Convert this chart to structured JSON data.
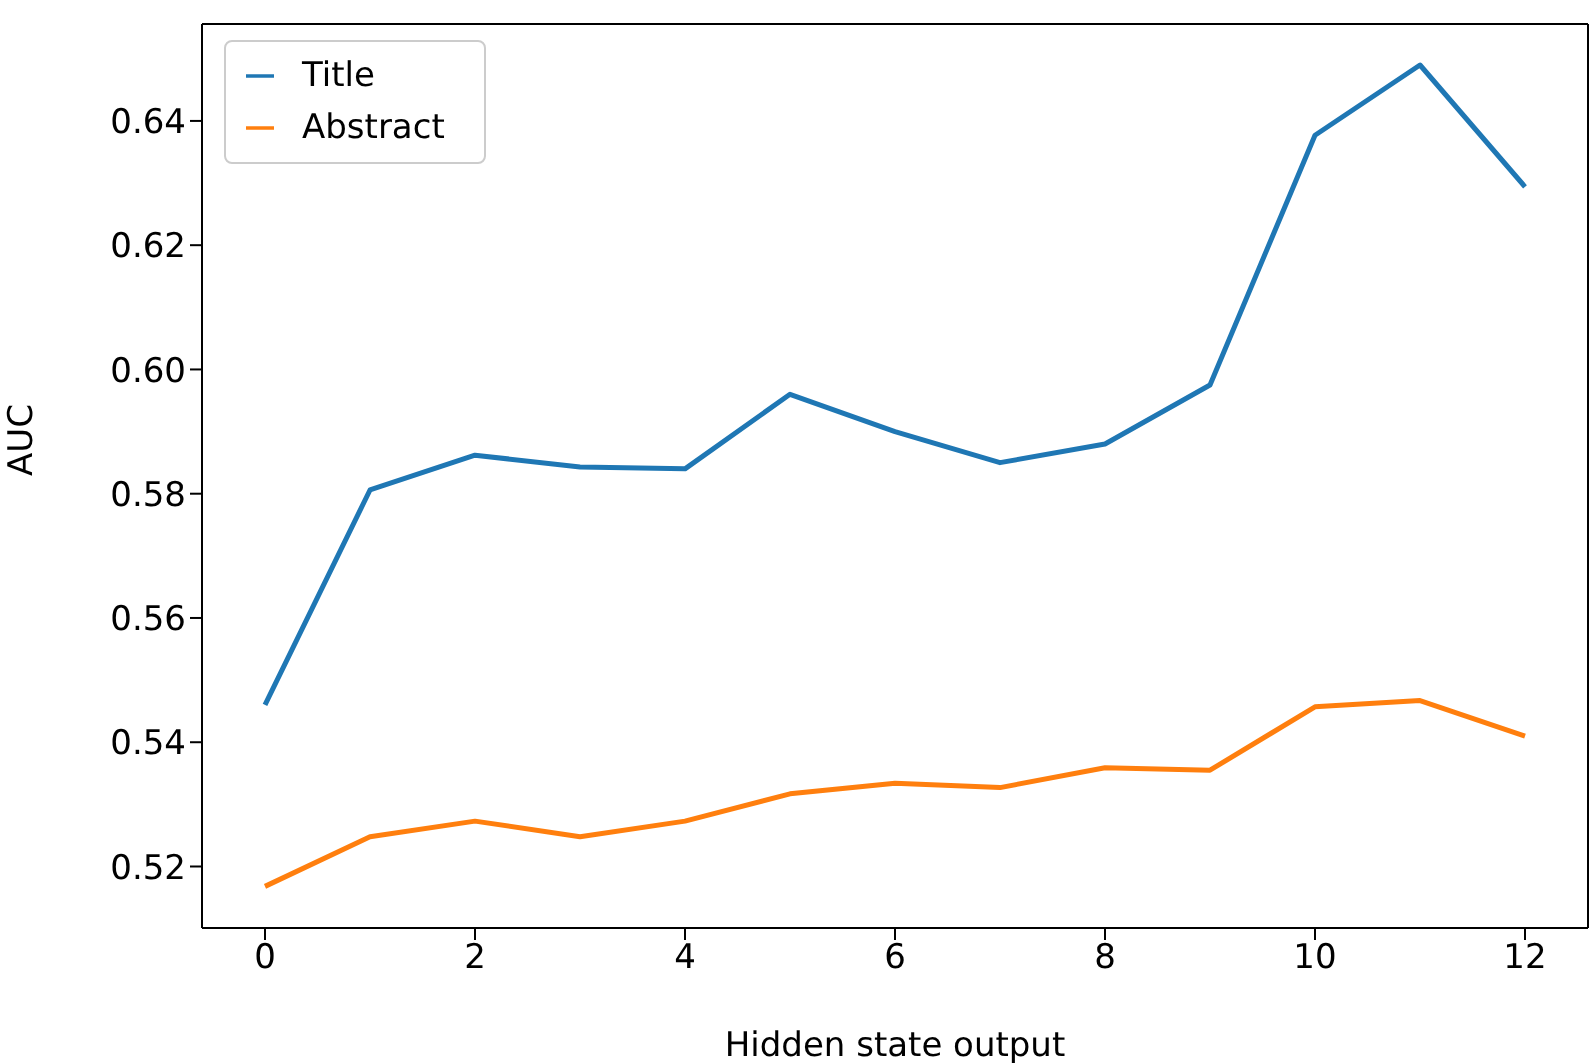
{
  "chart_data": {
    "type": "line",
    "xlabel": "Hidden state output",
    "ylabel": "AUC",
    "x": [
      0,
      1,
      2,
      3,
      4,
      5,
      6,
      7,
      8,
      9,
      10,
      11,
      12
    ],
    "series": [
      {
        "name": "Title",
        "color": "#1f77b4",
        "values": [
          0.546,
          0.5806,
          0.5862,
          0.5843,
          0.584,
          0.596,
          0.59,
          0.585,
          0.588,
          0.5975,
          0.6377,
          0.649,
          0.6294
        ]
      },
      {
        "name": "Abstract",
        "color": "#ff7f0e",
        "values": [
          0.5168,
          0.5248,
          0.5273,
          0.5248,
          0.5273,
          0.5317,
          0.5334,
          0.5327,
          0.5359,
          0.5355,
          0.5457,
          0.5467,
          0.541
        ]
      }
    ],
    "xlim": [
      -0.6,
      12.6
    ],
    "xticks": [
      0,
      2,
      4,
      6,
      8,
      10,
      12
    ],
    "ylim": [
      0.5101,
      0.6556
    ],
    "yticks": [
      0.52,
      0.54,
      0.56,
      0.58,
      {
        "value": 0.6,
        "label": "0.60"
      },
      0.62,
      0.64
    ],
    "legend": "top left",
    "grid": false,
    "marker": "none",
    "line_style": "solid"
  }
}
